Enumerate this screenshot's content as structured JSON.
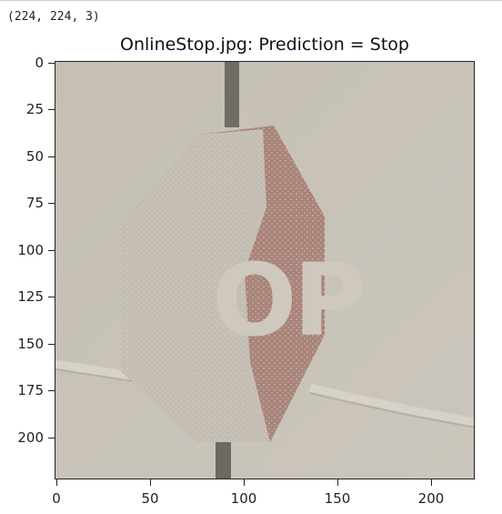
{
  "output": {
    "shape_text": "(224, 224, 3)"
  },
  "figure": {
    "title": "OnlineStop.jpg: Prediction = Stop"
  },
  "image": {
    "sign_text": "OP",
    "colors": {
      "background": "#c7c1b7",
      "sign_red": "#a98379",
      "sign_snow": "#c4bdb3",
      "pole": "#6f6d64"
    }
  },
  "axes": {
    "x_ticks": [
      "0",
      "50",
      "100",
      "150",
      "200"
    ],
    "y_ticks": [
      "0",
      "25",
      "50",
      "75",
      "100",
      "125",
      "150",
      "175",
      "200"
    ]
  }
}
